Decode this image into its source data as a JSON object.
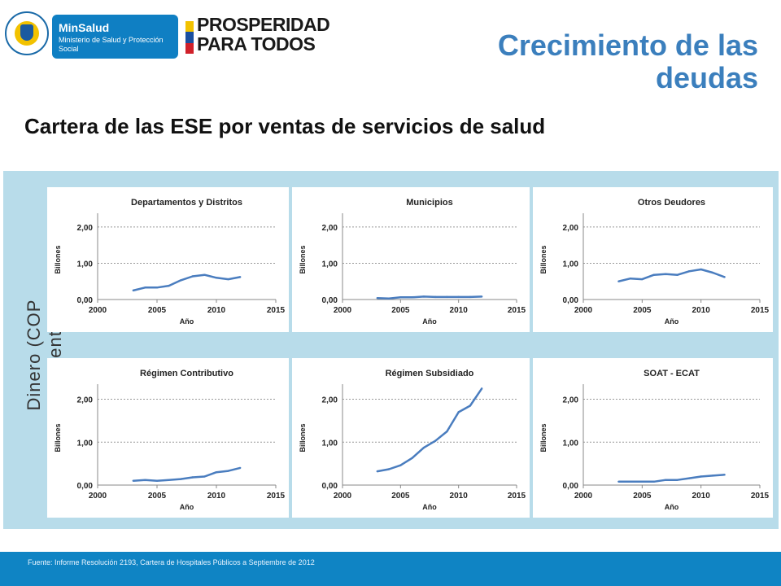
{
  "header": {
    "minsalud_name": "MinSalud",
    "minsalud_sub": "Ministerio de Salud y Protección Social",
    "prosperidad_line1": "PROSPERIDAD",
    "prosperidad_line2": "PARA TODOS",
    "title_line1": "Crecimiento de las",
    "title_line2": "deudas",
    "subtitle": "Cartera de las ESE por ventas de servicios de salud",
    "seal_text": "REPÚBLICA DE COLOMBIA"
  },
  "panel": {
    "y_axis_label": "Dinero (COP corriente)"
  },
  "colors": {
    "title": "#3b7fbd",
    "line": "#4a7dbf",
    "panel": "#b8dcea",
    "footer": "#0f84c4",
    "minsalud": "#0f7fc3"
  },
  "chart_data": [
    {
      "type": "line",
      "title": "Departamentos y Distritos",
      "xlabel": "Año",
      "ylabel": "Billones",
      "xlim": [
        2000,
        2015
      ],
      "ylim": [
        0,
        2.2
      ],
      "xticks": [
        "2000",
        "2005",
        "2010",
        "2015"
      ],
      "yticks": [
        "0,00",
        "1,00",
        "2,00"
      ],
      "grid": true,
      "series": [
        {
          "x": [
            2003,
            2004,
            2005,
            2006,
            2007,
            2008,
            2009,
            2010,
            2011,
            2012
          ],
          "values": [
            0.25,
            0.33,
            0.33,
            0.38,
            0.53,
            0.64,
            0.68,
            0.6,
            0.56,
            0.62
          ]
        }
      ]
    },
    {
      "type": "line",
      "title": "Municipios",
      "xlabel": "Año",
      "ylabel": "Billones",
      "xlim": [
        2000,
        2015
      ],
      "ylim": [
        0,
        2.2
      ],
      "xticks": [
        "2000",
        "2005",
        "2010",
        "2015"
      ],
      "yticks": [
        "0,00",
        "1,00",
        "2,00"
      ],
      "grid": true,
      "series": [
        {
          "x": [
            2003,
            2004,
            2005,
            2006,
            2007,
            2008,
            2009,
            2010,
            2011,
            2012
          ],
          "values": [
            0.04,
            0.03,
            0.06,
            0.06,
            0.08,
            0.07,
            0.07,
            0.07,
            0.07,
            0.08
          ]
        }
      ]
    },
    {
      "type": "line",
      "title": "Otros Deudores",
      "xlabel": "Año",
      "ylabel": "Billones",
      "xlim": [
        2000,
        2015
      ],
      "ylim": [
        0,
        2.2
      ],
      "xticks": [
        "2000",
        "2005",
        "2010",
        "2015"
      ],
      "yticks": [
        "0,00",
        "1,00",
        "2,00"
      ],
      "grid": true,
      "series": [
        {
          "x": [
            2003,
            2004,
            2005,
            2006,
            2007,
            2008,
            2009,
            2010,
            2011,
            2012
          ],
          "values": [
            0.5,
            0.58,
            0.56,
            0.68,
            0.7,
            0.68,
            0.78,
            0.83,
            0.74,
            0.62
          ]
        }
      ]
    },
    {
      "type": "line",
      "title": "Régimen Contributivo",
      "xlabel": "Año",
      "ylabel": "Billones",
      "xlim": [
        2000,
        2015
      ],
      "ylim": [
        0,
        2.2
      ],
      "xticks": [
        "2000",
        "2005",
        "2010",
        "2015"
      ],
      "yticks": [
        "0,00",
        "1,00",
        "2,00"
      ],
      "grid": true,
      "series": [
        {
          "x": [
            2003,
            2004,
            2005,
            2006,
            2007,
            2008,
            2009,
            2010,
            2011,
            2012
          ],
          "values": [
            0.1,
            0.12,
            0.1,
            0.12,
            0.14,
            0.18,
            0.2,
            0.3,
            0.33,
            0.4
          ]
        }
      ]
    },
    {
      "type": "line",
      "title": "Régimen Subsidiado",
      "xlabel": "Año",
      "ylabel": "Billones",
      "xlim": [
        2000,
        2015
      ],
      "ylim": [
        0,
        2.2
      ],
      "xticks": [
        "2000",
        "2005",
        "2010",
        "2015"
      ],
      "yticks": [
        "0,00",
        "1,00",
        "2,00"
      ],
      "grid": true,
      "series": [
        {
          "x": [
            2003,
            2004,
            2005,
            2006,
            2007,
            2008,
            2009,
            2010,
            2011,
            2012
          ],
          "values": [
            0.32,
            0.37,
            0.46,
            0.63,
            0.87,
            1.03,
            1.25,
            1.7,
            1.85,
            2.25
          ]
        }
      ]
    },
    {
      "type": "line",
      "title": "SOAT - ECAT",
      "xlabel": "Año",
      "ylabel": "Billones",
      "xlim": [
        2000,
        2015
      ],
      "ylim": [
        0,
        2.2
      ],
      "xticks": [
        "2000",
        "2005",
        "2010",
        "2015"
      ],
      "yticks": [
        "0,00",
        "1,00",
        "2,00"
      ],
      "grid": true,
      "series": [
        {
          "x": [
            2003,
            2004,
            2005,
            2006,
            2007,
            2008,
            2009,
            2010,
            2011,
            2012
          ],
          "values": [
            0.08,
            0.08,
            0.08,
            0.08,
            0.12,
            0.12,
            0.16,
            0.2,
            0.22,
            0.24
          ]
        }
      ]
    }
  ],
  "footer": {
    "source": "Fuente: Informe Resolución 2193, Cartera de  Hospitales Públicos a Septiembre de 2012"
  }
}
